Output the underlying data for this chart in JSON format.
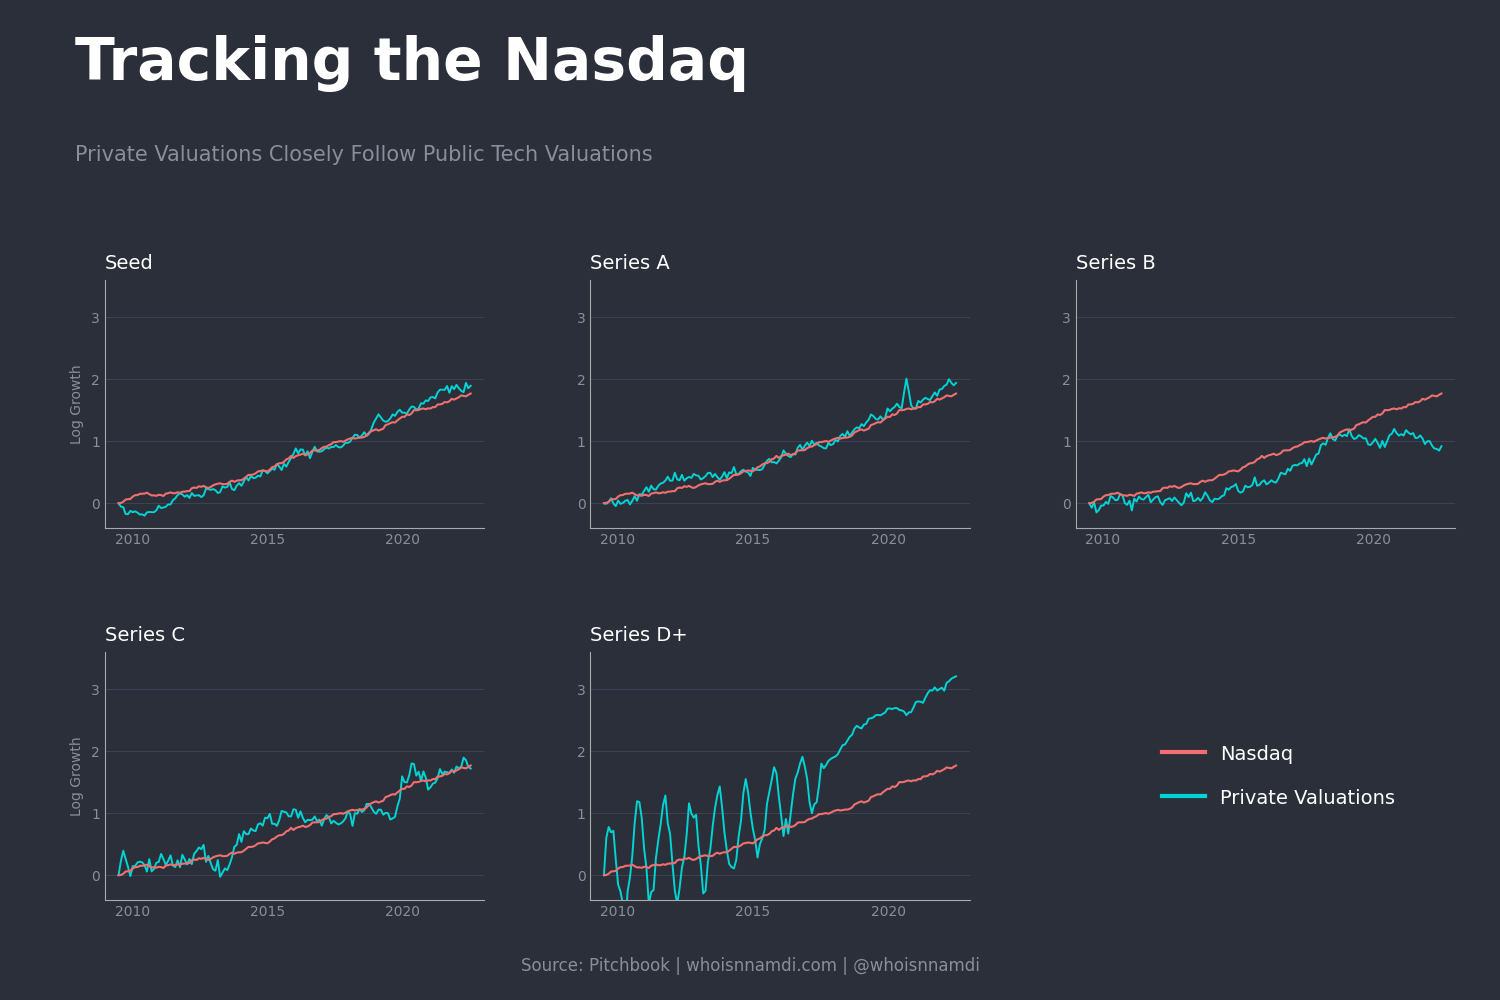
{
  "title": "Tracking the Nasdaq",
  "subtitle": "Private Valuations Closely Follow Public Tech Valuations",
  "source": "Source: Pitchbook | whoisnnamdi.com | @whoisnnamdi",
  "background_color": "#2b2f3a",
  "title_color": "#ffffff",
  "subtitle_color": "#8a8e9a",
  "text_color": "#8a8e9a",
  "source_color": "#8a8e9a",
  "nasdaq_color": "#f07070",
  "private_color": "#00d4d4",
  "grid_color": "#3d4150",
  "spine_color": "#aaaaaa",
  "panels": [
    "Seed",
    "Series A",
    "Series B",
    "Series C",
    "Series D+"
  ],
  "ylabel": "Log Growth",
  "yticks": [
    0,
    1,
    2,
    3
  ],
  "xticks": [
    2010,
    2015,
    2020
  ],
  "xmin": 2009.0,
  "xmax": 2023.0,
  "ymin": -0.4,
  "ymax": 3.6,
  "title_fontsize": 42,
  "subtitle_fontsize": 15,
  "panel_title_fontsize": 14,
  "tick_fontsize": 10,
  "legend_fontsize": 14,
  "source_fontsize": 12
}
